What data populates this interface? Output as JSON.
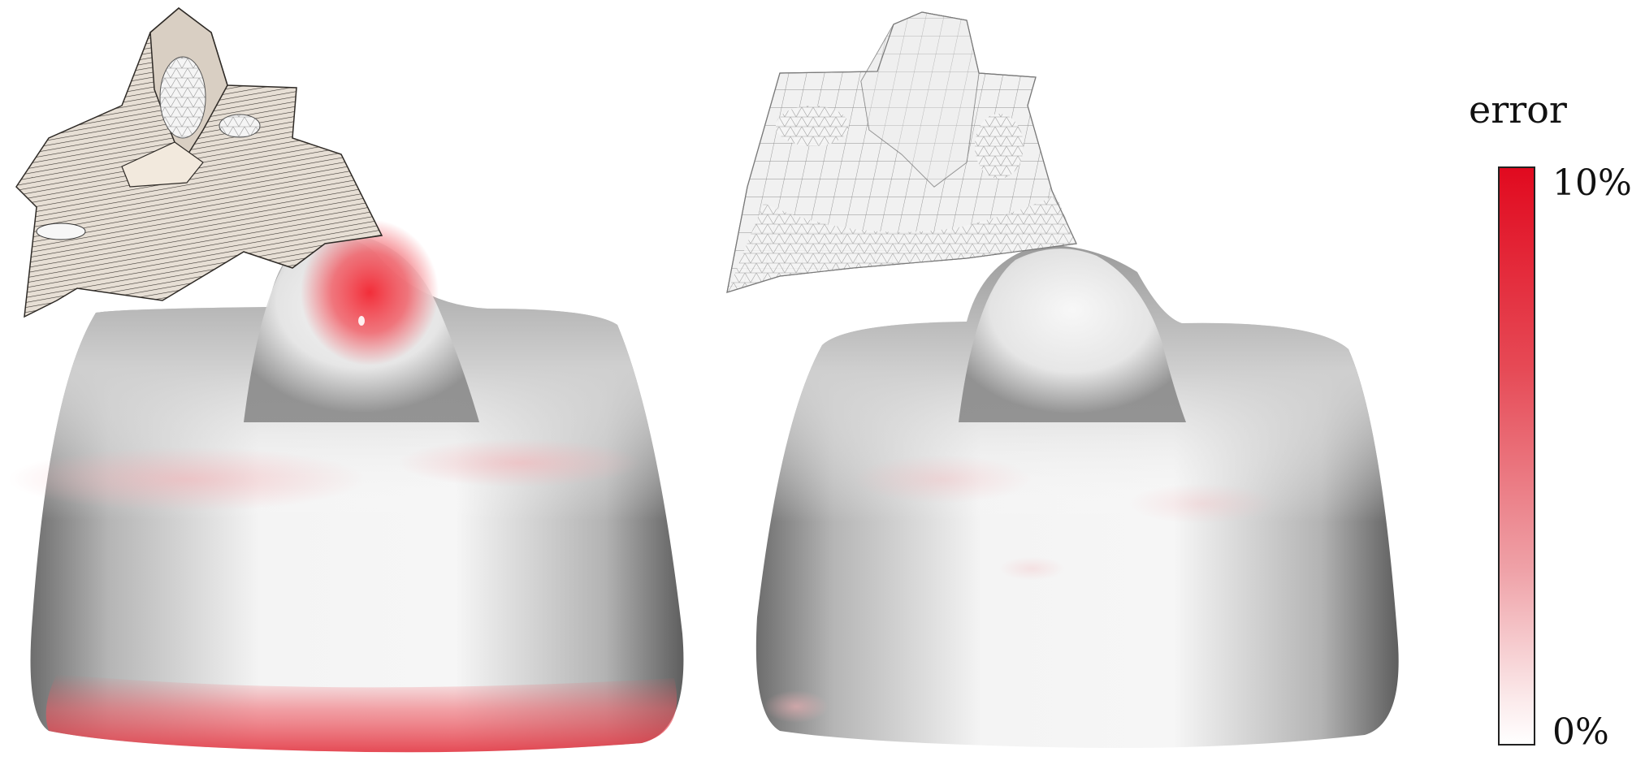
{
  "legend": {
    "title": "error",
    "max_label": "10%",
    "min_label": "0%",
    "color_max": "#e10a1f",
    "color_min": "#ffffff"
  },
  "panels": [
    {
      "name": "left-result",
      "max_error_pct": 10,
      "inset": "developable-strip-mesh"
    },
    {
      "name": "right-result",
      "max_error_pct": 2,
      "inset": "quad-triangle-mesh"
    }
  ]
}
